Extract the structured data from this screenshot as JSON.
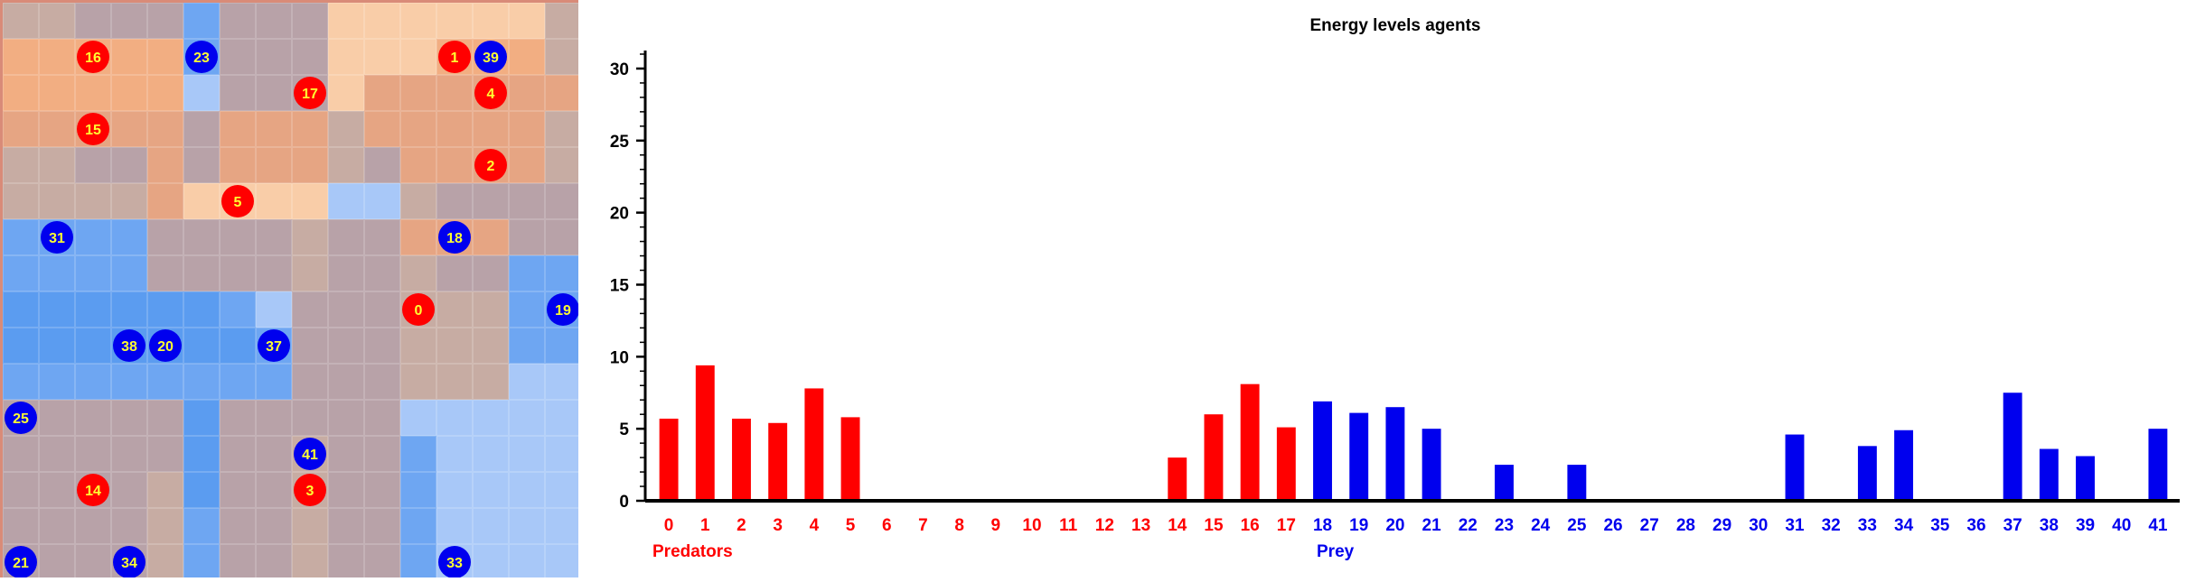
{
  "grid": {
    "size": 16,
    "colors": {
      "warm_light": "#f9cda8",
      "warm": "#f2ae82",
      "warm_mid": "#e6a583",
      "neutral": "#c7aca3",
      "gray": "#b8a2a8",
      "cool_light": "#a8c8f8",
      "cool": "#6ea6f2",
      "cool_strong": "#5b9cf0",
      "border": "#d98b78",
      "predator": "#ff0000",
      "prey": "#0000ee",
      "agent_label": "#ffff33"
    },
    "cells": [
      "NNGGGCGGGWWWWWWN",
      "AAAAACGGGWWWAAAN",
      "AAAAALGGGWMMMMMM",
      "MMMMMGMMMNMMMMMN",
      "NNGGMGMMMNGMMMMN",
      "NNNNMWWWWLLNGGGG",
      "CCCCGGGGNGGMMMGG",
      "CCCCGGGGNGGNGGCC",
      "BBBBBBCLGGGNNNCC",
      "BBBBBBBCGGGNNNCC",
      "CCCCCCCCGGGNNNLL",
      "GGGGGBGGGGGLLLLL",
      "GGGGGBGGNGGCLLLL",
      "GGGGNBGGNGGCLLLL",
      "GGGGNCGGNGGCLLLL",
      "GGGGNCGGNGGCLLLL"
    ],
    "agents": [
      {
        "id": "16",
        "kind": "predator",
        "row": 1,
        "col": 2
      },
      {
        "id": "23",
        "kind": "prey",
        "row": 1,
        "col": 5
      },
      {
        "id": "1",
        "kind": "predator",
        "row": 1,
        "col": 12
      },
      {
        "id": "39",
        "kind": "prey",
        "row": 1,
        "col": 13
      },
      {
        "id": "17",
        "kind": "predator",
        "row": 2,
        "col": 8
      },
      {
        "id": "4",
        "kind": "predator",
        "row": 2,
        "col": 13
      },
      {
        "id": "15",
        "kind": "predator",
        "row": 3,
        "col": 2
      },
      {
        "id": "2",
        "kind": "predator",
        "row": 4,
        "col": 13
      },
      {
        "id": "5",
        "kind": "predator",
        "row": 5,
        "col": 6
      },
      {
        "id": "31",
        "kind": "prey",
        "row": 6,
        "col": 1
      },
      {
        "id": "18",
        "kind": "prey",
        "row": 6,
        "col": 12
      },
      {
        "id": "0",
        "kind": "predator",
        "row": 8,
        "col": 11
      },
      {
        "id": "19",
        "kind": "prey",
        "row": 8,
        "col": 15
      },
      {
        "id": "38",
        "kind": "prey",
        "row": 9,
        "col": 3
      },
      {
        "id": "20",
        "kind": "prey",
        "row": 9,
        "col": 4
      },
      {
        "id": "37",
        "kind": "prey",
        "row": 9,
        "col": 7
      },
      {
        "id": "25",
        "kind": "prey",
        "row": 11,
        "col": 0
      },
      {
        "id": "41",
        "kind": "prey",
        "row": 12,
        "col": 8
      },
      {
        "id": "14",
        "kind": "predator",
        "row": 13,
        "col": 2
      },
      {
        "id": "3",
        "kind": "predator",
        "row": 13,
        "col": 8
      },
      {
        "id": "21",
        "kind": "prey",
        "row": 15,
        "col": 0
      },
      {
        "id": "34",
        "kind": "prey",
        "row": 15,
        "col": 3
      },
      {
        "id": "33",
        "kind": "prey",
        "row": 15,
        "col": 12
      }
    ]
  },
  "chart_data": {
    "type": "bar",
    "title": "Energy levels agents",
    "xlabel": "",
    "ylabel": "",
    "ylim": [
      0,
      31
    ],
    "y_ticks": [
      "0",
      "5",
      "10",
      "15",
      "20",
      "25",
      "30"
    ],
    "categories": [
      "0",
      "1",
      "2",
      "3",
      "4",
      "5",
      "6",
      "7",
      "8",
      "9",
      "10",
      "11",
      "12",
      "13",
      "14",
      "15",
      "16",
      "17",
      "18",
      "19",
      "20",
      "21",
      "22",
      "23",
      "24",
      "25",
      "26",
      "27",
      "28",
      "29",
      "30",
      "31",
      "32",
      "33",
      "34",
      "35",
      "36",
      "37",
      "38",
      "39",
      "40",
      "41"
    ],
    "values": [
      5.7,
      9.4,
      5.7,
      5.4,
      7.8,
      5.8,
      0,
      0,
      0,
      0,
      0,
      0,
      0,
      0,
      3.0,
      6.0,
      8.1,
      5.1,
      6.9,
      6.1,
      6.5,
      5.0,
      0,
      2.5,
      0,
      2.5,
      0,
      0,
      0,
      0,
      0,
      4.6,
      0,
      3.8,
      4.9,
      0,
      0,
      7.5,
      3.6,
      3.1,
      0,
      5.0
    ],
    "groups": [
      {
        "name": "Predators",
        "range": [
          0,
          17
        ],
        "color": "#ff0000"
      },
      {
        "name": "Prey",
        "range": [
          18,
          41
        ],
        "color": "#0000ee"
      }
    ],
    "grid": false,
    "legend": "bottom"
  }
}
